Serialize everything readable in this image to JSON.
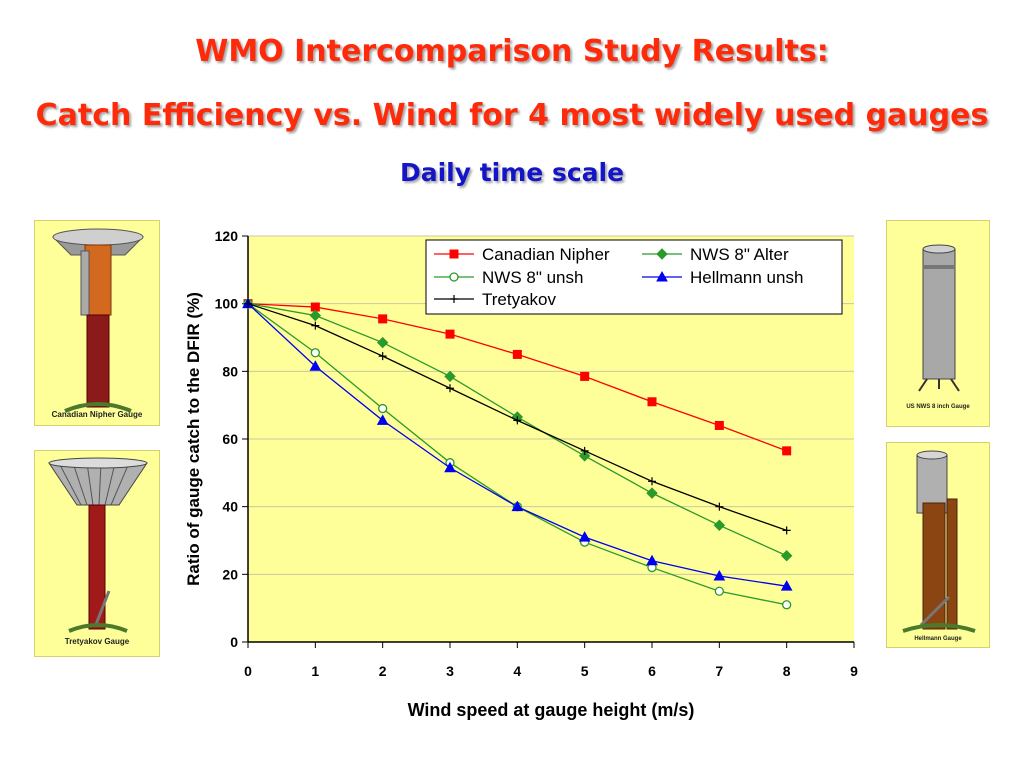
{
  "header": {
    "title_line1": "WMO Intercomparison Study Results:",
    "title_line2": "Catch Efficiency vs. Wind for 4 most widely used gauges",
    "subtitle": "Daily time scale"
  },
  "photos": {
    "nipher_caption": "Canadian Nipher Gauge",
    "tretyakov_caption": "Tretyakov Gauge",
    "nws_caption": "US NWS 8 inch Gauge",
    "hellmann_caption": "Hellmann Gauge"
  },
  "colors": {
    "plot_bg": "#ffff99",
    "photo_bg": "#ffff99",
    "title": "#ff2a0a",
    "subtitle": "#1515c8"
  },
  "chart_data": {
    "type": "line",
    "title": "",
    "xlabel": "Wind speed at gauge height (m/s)",
    "ylabel": "Ratio of gauge catch to the DFIR (%)",
    "xlim": [
      0,
      9
    ],
    "ylim": [
      0,
      120
    ],
    "x_ticks": [
      0,
      1,
      2,
      3,
      4,
      5,
      6,
      7,
      8,
      9
    ],
    "y_ticks": [
      0,
      20,
      40,
      60,
      80,
      100,
      120
    ],
    "grid": "horizontal",
    "legend_position": "top-right",
    "x": [
      0,
      1,
      2,
      3,
      4,
      5,
      6,
      7,
      8
    ],
    "series": [
      {
        "name": "Canadian Nipher",
        "color": "#ff0000",
        "marker": "square",
        "values": [
          100,
          99,
          95.5,
          91,
          85,
          78.5,
          71,
          64,
          56.5
        ]
      },
      {
        "name": "NWS 8\" Alter",
        "color": "#2a9a2a",
        "marker": "diamond",
        "values": [
          100,
          96.5,
          88.5,
          78.5,
          66.5,
          55,
          44,
          34.5,
          25.5
        ]
      },
      {
        "name": "NWS 8\" unsh",
        "color": "#2a9a2a",
        "marker": "circle",
        "values": [
          100,
          85.5,
          69,
          53,
          40,
          29.5,
          22,
          15,
          11
        ]
      },
      {
        "name": "Hellmann unsh",
        "color": "#0000ee",
        "marker": "triangle",
        "values": [
          100,
          81.5,
          65.5,
          51.5,
          40,
          31,
          24,
          19.5,
          16.5
        ]
      },
      {
        "name": "Tretyakov",
        "color": "#000000",
        "marker": "plus",
        "values": [
          100,
          93.5,
          84.5,
          75,
          65.5,
          56.5,
          47.5,
          40,
          33
        ]
      }
    ]
  }
}
